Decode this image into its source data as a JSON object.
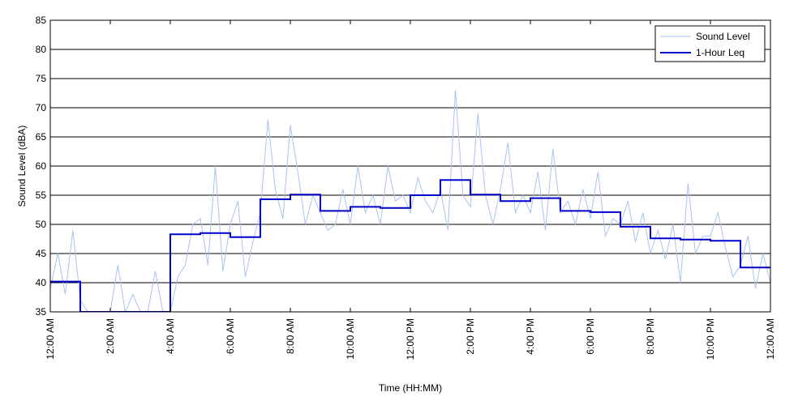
{
  "chart_data": {
    "type": "line",
    "xlabel": "Time (HH:MM)",
    "ylabel": "Sound Level (dBA)",
    "xlim": [
      0,
      24
    ],
    "ylim": [
      35,
      85
    ],
    "grid": "horizontal",
    "legend_position": "top-right",
    "y_ticks": [
      35,
      40,
      45,
      50,
      55,
      60,
      65,
      70,
      75,
      80,
      85
    ],
    "x_ticks": [
      {
        "x": 0,
        "label": "12:00 AM"
      },
      {
        "x": 2,
        "label": "2:00 AM"
      },
      {
        "x": 4,
        "label": "4:00 AM"
      },
      {
        "x": 6,
        "label": "6:00 AM"
      },
      {
        "x": 8,
        "label": "8:00 AM"
      },
      {
        "x": 10,
        "label": "10:00 AM"
      },
      {
        "x": 12,
        "label": "12:00 PM"
      },
      {
        "x": 14,
        "label": "2:00 PM"
      },
      {
        "x": 16,
        "label": "4:00 PM"
      },
      {
        "x": 18,
        "label": "6:00 PM"
      },
      {
        "x": 20,
        "label": "8:00 PM"
      },
      {
        "x": 22,
        "label": "10:00 PM"
      },
      {
        "x": 24,
        "label": "12:00 AM"
      }
    ],
    "series": [
      {
        "name": "Sound Level",
        "color": "#a9c2f2",
        "style": "thin noisy line",
        "x": [
          0,
          0.25,
          0.5,
          0.75,
          1.0,
          1.25,
          1.5,
          1.75,
          2.0,
          2.25,
          2.5,
          2.75,
          3.0,
          3.25,
          3.5,
          3.75,
          4.0,
          4.25,
          4.5,
          4.75,
          5.0,
          5.25,
          5.5,
          5.75,
          6.0,
          6.25,
          6.5,
          6.75,
          7.0,
          7.25,
          7.5,
          7.75,
          8.0,
          8.25,
          8.5,
          8.75,
          9.0,
          9.25,
          9.5,
          9.75,
          10.0,
          10.25,
          10.5,
          10.75,
          11.0,
          11.25,
          11.5,
          11.75,
          12.0,
          12.25,
          12.5,
          12.75,
          13.0,
          13.25,
          13.5,
          13.75,
          14.0,
          14.25,
          14.5,
          14.75,
          15.0,
          15.25,
          15.5,
          15.75,
          16.0,
          16.25,
          16.5,
          16.75,
          17.0,
          17.25,
          17.5,
          17.75,
          18.0,
          18.25,
          18.5,
          18.75,
          19.0,
          19.25,
          19.5,
          19.75,
          20.0,
          20.25,
          20.5,
          20.75,
          21.0,
          21.25,
          21.5,
          21.75,
          22.0,
          22.25,
          22.5,
          22.75,
          23.0,
          23.25,
          23.5,
          23.75,
          24.0
        ],
        "values": [
          39,
          45,
          38,
          49,
          37,
          35,
          35,
          35,
          35,
          43,
          35,
          38,
          35,
          35,
          42,
          35,
          35,
          41,
          43,
          50,
          51,
          43,
          60,
          42,
          50,
          54,
          41,
          47,
          52,
          68,
          56,
          51,
          67,
          59,
          50,
          55,
          52,
          49,
          50,
          56,
          50,
          60,
          52,
          55,
          50,
          60,
          54,
          55,
          52,
          58,
          54,
          52,
          56,
          49,
          73,
          55,
          53,
          69,
          55,
          50,
          56,
          64,
          52,
          55,
          52,
          59,
          49,
          63,
          52,
          54,
          50,
          56,
          51,
          59,
          48,
          51,
          50,
          54,
          47,
          52,
          45,
          49,
          44,
          50,
          40,
          57,
          45,
          48,
          48,
          52,
          46,
          41,
          43,
          48,
          39,
          45,
          40
        ]
      },
      {
        "name": "1-Hour Leq",
        "color": "#0000cc",
        "style": "step",
        "x": [
          0,
          1,
          2,
          3,
          4,
          5,
          6,
          7,
          8,
          9,
          10,
          11,
          12,
          13,
          14,
          15,
          16,
          17,
          18,
          19,
          20,
          21,
          22,
          23,
          24
        ],
        "values": [
          40.2,
          35,
          35,
          35,
          48.3,
          48.5,
          47.8,
          54.3,
          55.1,
          52.3,
          53.0,
          52.8,
          55.0,
          57.6,
          55.1,
          54.0,
          54.5,
          52.3,
          52.1,
          49.6,
          47.6,
          47.4,
          47.2,
          42.6,
          42.6
        ]
      }
    ]
  }
}
